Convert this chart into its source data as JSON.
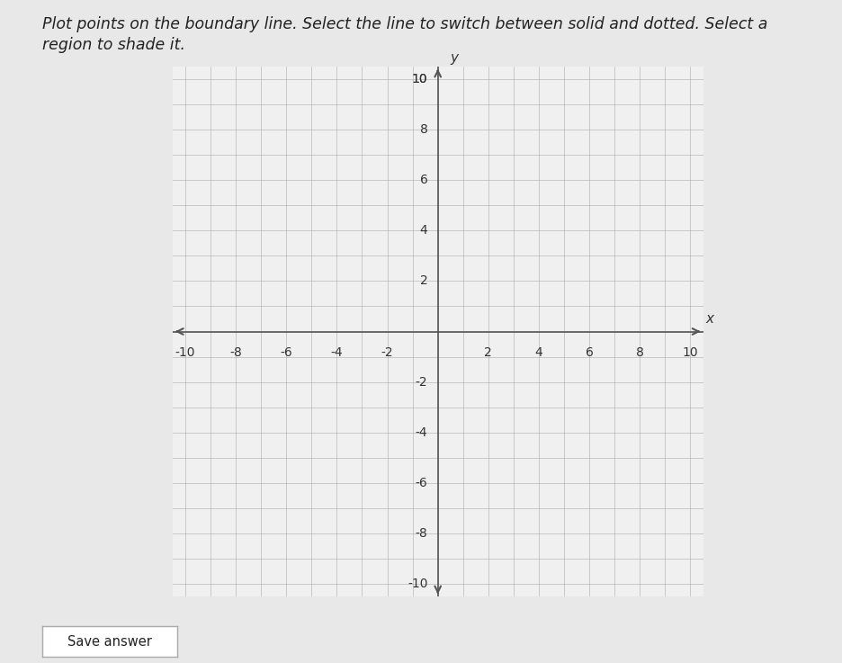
{
  "background_color": "#e8e8e8",
  "plot_bg_color": "#f0f0f0",
  "grid_color": "#aaaaaa",
  "axis_color": "#555555",
  "title_text_line1": "Plot points on the boundary line. Select the line to switch between solid and dotted. Select a",
  "title_text_line2": "region to shade it.",
  "title_fontsize": 12.5,
  "title_style": "italic",
  "x_label": "x",
  "y_label": "y",
  "x_ticks": [
    -10,
    -8,
    -6,
    -4,
    -2,
    2,
    4,
    6,
    8,
    10
  ],
  "y_ticks": [
    -10,
    -8,
    -6,
    -4,
    -2,
    2,
    4,
    6,
    8,
    10
  ],
  "axis_limit": 10.5,
  "tick_fontsize": 10,
  "save_button_text": "Save answer",
  "save_button_color": "#ffffff",
  "save_button_border": "#aaaaaa"
}
